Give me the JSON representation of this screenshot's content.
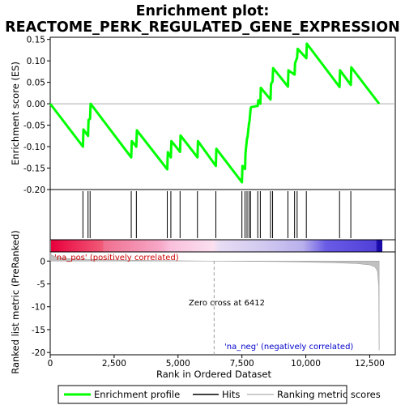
{
  "chart_data": {
    "type": "line",
    "title_line1": "Enrichment plot:",
    "title_line2": "REACTOME_PERK_REGULATED_GENE_EXPRESSION",
    "top_panel": {
      "ylabel": "Enrichment score (ES)",
      "ylim": [
        -0.2,
        0.155
      ],
      "yticks": [
        -0.2,
        -0.15,
        -0.1,
        -0.05,
        0.0,
        0.05,
        0.1,
        0.15
      ],
      "ytick_labels": [
        "-0.20",
        "-0.15",
        "-0.10",
        "-0.05",
        "0.00",
        "0.05",
        "0.10",
        "0.15"
      ],
      "series": [
        {
          "name": "Enrichment profile",
          "color": "#00ff00",
          "x": [
            0,
            1280,
            1300,
            1480,
            1500,
            1560,
            1580,
            3170,
            3190,
            3370,
            3390,
            4580,
            4600,
            4720,
            4740,
            5080,
            5100,
            5760,
            5780,
            6480,
            6500,
            7500,
            7520,
            7620,
            7640,
            7700,
            7720,
            7780,
            7800,
            7840,
            7860,
            8120,
            8140,
            8220,
            8240,
            8620,
            8640,
            8700,
            8720,
            9300,
            9320,
            9560,
            9580,
            9660,
            9680,
            10020,
            10040,
            11320,
            11340,
            11760,
            11780,
            12870
          ],
          "y": [
            0.0,
            -0.1,
            -0.06,
            -0.075,
            -0.038,
            -0.035,
            0.0,
            -0.125,
            -0.087,
            -0.1,
            -0.062,
            -0.153,
            -0.113,
            -0.125,
            -0.087,
            -0.112,
            -0.074,
            -0.125,
            -0.087,
            -0.145,
            -0.105,
            -0.183,
            -0.145,
            -0.152,
            -0.115,
            -0.08,
            -0.078,
            -0.045,
            -0.04,
            -0.012,
            -0.008,
            -0.005,
            0.008,
            0.0,
            0.037,
            0.01,
            0.046,
            0.052,
            0.083,
            0.04,
            0.078,
            0.068,
            0.095,
            0.107,
            0.128,
            0.106,
            0.14,
            0.039,
            0.078,
            0.044,
            0.085,
            0.0
          ]
        }
      ]
    },
    "hits": [
      1280,
      1480,
      1560,
      3170,
      3370,
      4580,
      4720,
      5080,
      5760,
      6480,
      7500,
      7620,
      7700,
      7780,
      7840,
      8120,
      8220,
      8620,
      8700,
      9300,
      9560,
      9660,
      10020,
      11320,
      11760
    ],
    "bottom_panel": {
      "ylabel": "Ranked list metric (PreRanked)",
      "xlabel": "Rank in Ordered Dataset",
      "ylim": [
        -20.5,
        2.0
      ],
      "yticks": [
        0,
        -5,
        -10,
        -15,
        -20
      ],
      "ytick_labels": [
        "0",
        "-5",
        "-10",
        "-15",
        "-20"
      ],
      "xticks": [
        0,
        2500,
        5000,
        7500,
        10000,
        12500
      ],
      "xtick_labels": [
        "0",
        "2,500",
        "5,000",
        "7,500",
        "10,000",
        "12,500"
      ],
      "xlim": [
        0,
        13500
      ],
      "metric_x": [
        0,
        60,
        250,
        800,
        2000,
        4000,
        6412,
        9000,
        11000,
        12000,
        12500,
        12700,
        12800,
        12850,
        12870
      ],
      "metric_y": [
        1.9,
        1.3,
        0.85,
        0.5,
        0.3,
        0.12,
        0.0,
        -0.12,
        -0.35,
        -0.55,
        -0.85,
        -1.3,
        -2.2,
        -5.5,
        -19.5
      ],
      "zero_cross_rank": 6412,
      "zero_cross_label": "Zero cross at 6412",
      "pos_label": "'na_pos' (positively correlated)",
      "neg_label": "'na_neg' (negatively correlated)",
      "pos_color": "#cc0000",
      "neg_color": "#0000cc"
    },
    "legend": {
      "items": [
        "Enrichment profile",
        "Hits",
        "Ranking metric scores"
      ],
      "placement": "bottom"
    }
  }
}
